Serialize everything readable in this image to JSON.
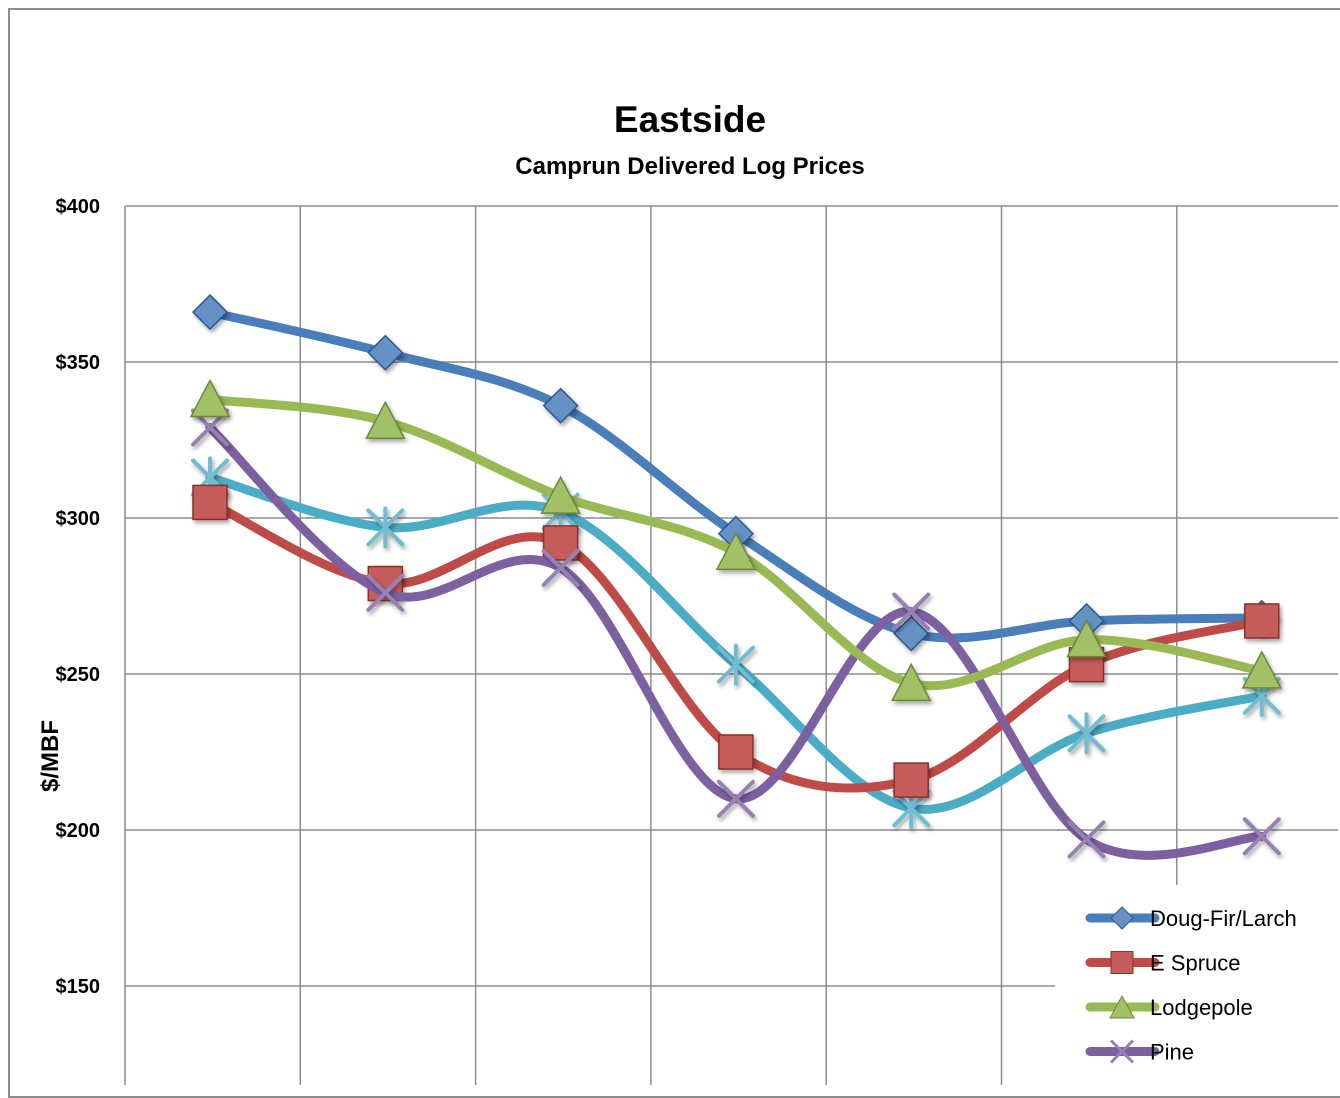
{
  "chart_data": {
    "type": "line",
    "title": "Eastside",
    "subtitle": "Camprun Delivered Log Prices",
    "ylabel": "$/MBF",
    "xlabel": "",
    "ylim": [
      120,
      400
    ],
    "yticks": [
      400,
      350,
      300,
      250,
      200,
      150
    ],
    "ytick_labels": [
      "$400",
      "$350",
      "$300",
      "$250",
      "$200",
      "$150"
    ],
    "x": [
      1,
      2,
      3,
      4,
      5,
      6,
      7
    ],
    "grid": true,
    "smooth": true,
    "legend_position": "bottom-right",
    "series": [
      {
        "name": "Doug-Fir/Larch",
        "marker": "diamond",
        "color": "#4a7ebb",
        "values": [
          366,
          353,
          336,
          295,
          263,
          267,
          268
        ]
      },
      {
        "name": "E Spruce",
        "marker": "square",
        "color": "#be4b48",
        "values": [
          305,
          279,
          292,
          225,
          216,
          253,
          267
        ]
      },
      {
        "name": "Lodgepole",
        "marker": "triangle",
        "color": "#98b954",
        "values": [
          338,
          331,
          307,
          289,
          247,
          261,
          251
        ]
      },
      {
        "name": "Pine",
        "marker": "x",
        "color": "#7d60a0",
        "values": [
          329,
          276,
          284,
          210,
          270,
          197,
          198
        ]
      },
      {
        "name": "",
        "marker": "star",
        "color": "#4bacc6",
        "values": [
          313,
          297,
          302,
          253,
          207,
          231,
          243
        ]
      }
    ]
  }
}
